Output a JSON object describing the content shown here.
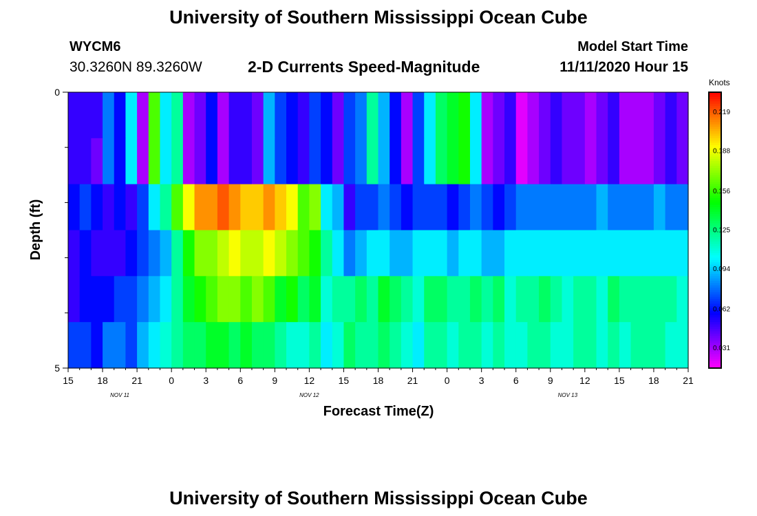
{
  "header": {
    "title": "University of Southern Mississippi Ocean Cube",
    "station": "WYCM6",
    "coordinates": "30.3260N 89.3260W",
    "model_start_label": "Model Start Time",
    "model_start_value": "11/11/2020 Hour 15"
  },
  "footer": {
    "title": "University of Southern Mississippi Ocean Cube"
  },
  "chart_data": {
    "type": "heatmap",
    "title": "2-D Currents Speed-Magnitude",
    "xlabel": "Forecast Time(Z)",
    "ylabel": "Depth (ft)",
    "x_tick_labels": [
      "15",
      "18",
      "21",
      "0",
      "3",
      "6",
      "9",
      "12",
      "15",
      "18",
      "21",
      "0",
      "3",
      "6",
      "9",
      "12",
      "15",
      "18",
      "21"
    ],
    "date_labels": [
      {
        "text": "NOV 11",
        "at_tick": 1.5
      },
      {
        "text": "NOV 12",
        "at_tick": 7.0
      },
      {
        "text": "NOV 13",
        "at_tick": 14.5
      }
    ],
    "y_tick_labels": [
      "0",
      "5"
    ],
    "ylim": [
      0,
      5
    ],
    "colorbar": {
      "units": "Knots",
      "min": 0.015,
      "max": 0.235,
      "tick_values": [
        0.219,
        0.188,
        0.156,
        0.125,
        0.094,
        0.062,
        0.031
      ],
      "tick_labels": [
        "0.219",
        "0.188",
        "0.156",
        "0.125",
        "0.094",
        "0.062",
        "0.031"
      ]
    },
    "hours_per_tick": 3,
    "n_columns": 54,
    "depth_rows": [
      [
        0.05,
        0.05,
        0.05,
        0.08,
        0.06,
        0.1,
        0.03,
        0.16,
        0.1,
        0.12,
        0.03,
        0.04,
        0.06,
        0.03,
        0.05,
        0.05,
        0.04,
        0.09,
        0.07,
        0.06,
        0.05,
        0.07,
        0.06,
        0.04,
        0.07,
        0.08,
        0.12,
        0.09,
        0.06,
        0.03,
        0.07,
        0.1,
        0.13,
        0.14,
        0.15,
        0.1,
        0.03,
        0.04,
        0.05,
        0.02,
        0.03,
        0.04,
        0.05,
        0.04,
        0.04,
        0.03,
        0.04,
        0.05,
        0.03,
        0.03,
        0.03,
        0.04,
        0.05,
        0.04
      ],
      [
        0.05,
        0.05,
        0.04,
        0.08,
        0.06,
        0.1,
        0.03,
        0.16,
        0.1,
        0.12,
        0.03,
        0.04,
        0.06,
        0.03,
        0.05,
        0.05,
        0.04,
        0.09,
        0.07,
        0.06,
        0.05,
        0.07,
        0.06,
        0.04,
        0.07,
        0.08,
        0.12,
        0.09,
        0.06,
        0.03,
        0.07,
        0.1,
        0.13,
        0.14,
        0.15,
        0.1,
        0.03,
        0.04,
        0.05,
        0.02,
        0.03,
        0.04,
        0.05,
        0.04,
        0.04,
        0.03,
        0.04,
        0.05,
        0.03,
        0.03,
        0.03,
        0.04,
        0.05,
        0.04
      ],
      [
        0.06,
        0.07,
        0.06,
        0.05,
        0.06,
        0.05,
        0.07,
        0.1,
        0.12,
        0.16,
        0.19,
        0.21,
        0.21,
        0.22,
        0.21,
        0.2,
        0.2,
        0.21,
        0.2,
        0.19,
        0.16,
        0.17,
        0.1,
        0.09,
        0.05,
        0.07,
        0.07,
        0.08,
        0.07,
        0.06,
        0.07,
        0.07,
        0.07,
        0.06,
        0.07,
        0.08,
        0.07,
        0.06,
        0.07,
        0.08,
        0.08,
        0.08,
        0.08,
        0.08,
        0.08,
        0.08,
        0.09,
        0.08,
        0.08,
        0.08,
        0.08,
        0.09,
        0.08,
        0.08
      ],
      [
        0.05,
        0.06,
        0.05,
        0.05,
        0.05,
        0.06,
        0.07,
        0.08,
        0.09,
        0.12,
        0.15,
        0.17,
        0.17,
        0.18,
        0.19,
        0.18,
        0.18,
        0.19,
        0.18,
        0.17,
        0.16,
        0.15,
        0.12,
        0.1,
        0.08,
        0.09,
        0.1,
        0.1,
        0.09,
        0.09,
        0.1,
        0.1,
        0.1,
        0.09,
        0.1,
        0.1,
        0.09,
        0.09,
        0.1,
        0.1,
        0.1,
        0.1,
        0.1,
        0.1,
        0.1,
        0.1,
        0.1,
        0.1,
        0.1,
        0.1,
        0.1,
        0.1,
        0.1,
        0.1
      ],
      [
        0.05,
        0.06,
        0.06,
        0.06,
        0.07,
        0.07,
        0.08,
        0.09,
        0.1,
        0.12,
        0.14,
        0.15,
        0.16,
        0.17,
        0.17,
        0.16,
        0.17,
        0.16,
        0.14,
        0.15,
        0.13,
        0.14,
        0.11,
        0.12,
        0.12,
        0.13,
        0.12,
        0.14,
        0.13,
        0.12,
        0.11,
        0.13,
        0.13,
        0.12,
        0.12,
        0.13,
        0.12,
        0.13,
        0.11,
        0.12,
        0.12,
        0.13,
        0.12,
        0.11,
        0.12,
        0.12,
        0.11,
        0.13,
        0.12,
        0.12,
        0.12,
        0.12,
        0.12,
        0.11
      ],
      [
        0.07,
        0.07,
        0.06,
        0.08,
        0.08,
        0.07,
        0.09,
        0.1,
        0.11,
        0.12,
        0.13,
        0.13,
        0.14,
        0.14,
        0.13,
        0.14,
        0.13,
        0.13,
        0.12,
        0.11,
        0.11,
        0.12,
        0.1,
        0.11,
        0.13,
        0.12,
        0.12,
        0.13,
        0.12,
        0.11,
        0.1,
        0.12,
        0.12,
        0.11,
        0.12,
        0.12,
        0.11,
        0.12,
        0.11,
        0.11,
        0.12,
        0.12,
        0.11,
        0.11,
        0.12,
        0.12,
        0.11,
        0.12,
        0.11,
        0.12,
        0.12,
        0.12,
        0.11,
        0.11
      ]
    ]
  }
}
